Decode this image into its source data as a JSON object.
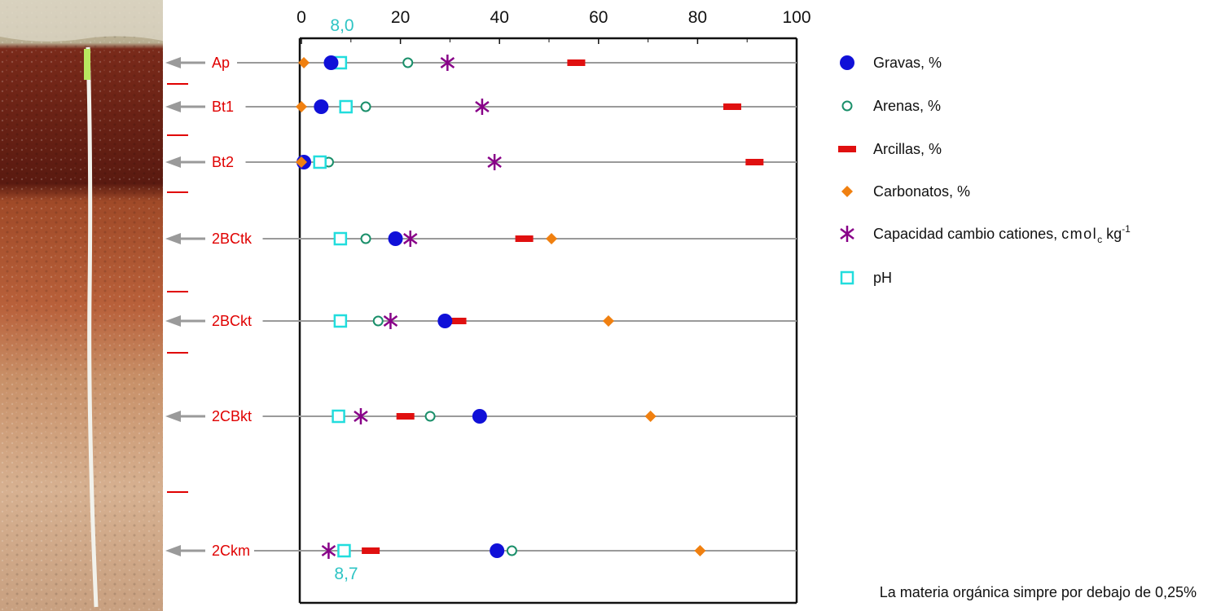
{
  "chart_data": {
    "type": "scatter",
    "x_ticks": [
      "0",
      "20",
      "40",
      "60",
      "80",
      "100"
    ],
    "xlim": [
      0,
      100
    ],
    "grid": false,
    "legend_placement": "right",
    "horizons": [
      "Ap",
      "Bt1",
      "Bt2",
      "2BCtk",
      "2BCkt",
      "2CBkt",
      "2Ckm"
    ],
    "series": [
      {
        "key": "gravas",
        "marker": "filled-circle",
        "color": "#1010d8",
        "values": [
          6,
          4,
          0.5,
          19,
          29,
          36,
          39.5
        ]
      },
      {
        "key": "arenas",
        "marker": "open-circle",
        "color": "#1a8f6a",
        "values": [
          21.5,
          13,
          5.5,
          13,
          15.5,
          26,
          42.5
        ]
      },
      {
        "key": "arcillas",
        "marker": "bar",
        "color": "#e01010",
        "values": [
          55.5,
          87,
          91.5,
          45,
          31.5,
          21,
          14
        ]
      },
      {
        "key": "carbonatos",
        "marker": "diamond",
        "color": "#f08010",
        "values": [
          0.5,
          0,
          0,
          50.5,
          62,
          70.5,
          80.5
        ]
      },
      {
        "key": "cic",
        "marker": "asterisk",
        "color": "#880088",
        "values": [
          29.5,
          36.5,
          39,
          22,
          18,
          12,
          5.5
        ]
      },
      {
        "key": "ph",
        "marker": "open-square",
        "color": "#22dddd",
        "values": [
          8.3,
          8.6,
          7.2,
          8.3,
          8.3,
          8.2,
          8.5
        ]
      }
    ],
    "ph_range_labels": {
      "top": "8,0",
      "bottom": "8,7"
    }
  },
  "legend": {
    "gravas": "Gravas,  %",
    "arenas": "Arenas,  %",
    "arcillas": "Arcillas,  %",
    "carbonatos": "Carbonatos,  %",
    "cic_prefix": "Capacidad cambio cationes,  ",
    "cic_unit_cmol": "cmol",
    "cic_unit_c": "c",
    "cic_unit_kg": " kg",
    "cic_unit_exp": "-1",
    "ph": "pH"
  },
  "footnote": "La materia orgánica simpre por debajo de 0,25%",
  "colors": {
    "axis": "#111111",
    "row_line": "#9a9a9a",
    "arrow": "#9a9a9a",
    "horizon_label": "#e00000",
    "boundary_mark": "#e00000",
    "ph_label": "#2ec4c4"
  }
}
